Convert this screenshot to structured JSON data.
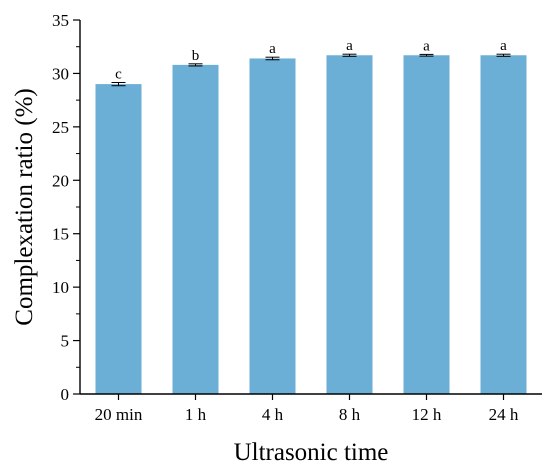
{
  "chart_data": {
    "type": "bar",
    "title": "",
    "xlabel": "Ultrasonic time",
    "ylabel": "Complexation ratio (%)",
    "categories": [
      "20 min",
      "1 h",
      "4 h",
      "8 h",
      "12 h",
      "24 h"
    ],
    "values": [
      29.0,
      30.8,
      31.4,
      31.7,
      31.7,
      31.7
    ],
    "errors": [
      0.15,
      0.1,
      0.12,
      0.1,
      0.08,
      0.1
    ],
    "significance": [
      "c",
      "b",
      "a",
      "a",
      "a",
      "a"
    ],
    "ylim": [
      0,
      35
    ],
    "yticks": [
      0,
      5,
      10,
      15,
      20,
      25,
      30,
      35
    ],
    "grid": false,
    "colors": {
      "bar": "#6BAED6",
      "axis": "#000000"
    }
  }
}
